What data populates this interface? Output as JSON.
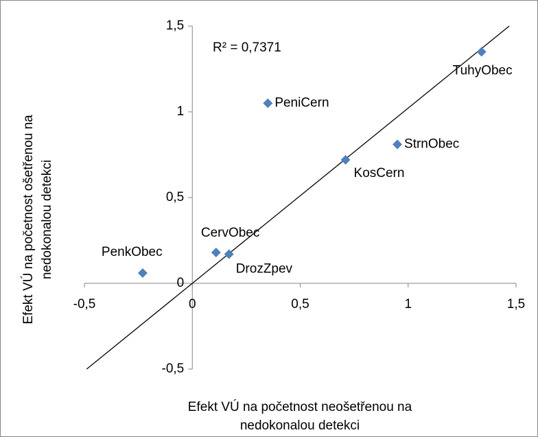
{
  "chart_data": {
    "type": "scatter",
    "annotation": "R² = 0,7371",
    "x_label": [
      "Efekt VÚ na početnost neošetřenou na",
      "nedokonalou detekci"
    ],
    "y_label": [
      "Efekt VÚ na početnost ošetřenou na",
      "nedokonalou detekci"
    ],
    "point_labels": [
      "TuhyObec",
      "PeniCern",
      "StrnObec",
      "KosCern",
      "CervObec",
      "DrozZpev",
      "PenkObec"
    ],
    "x": [
      1.34,
      0.35,
      0.95,
      0.71,
      0.11,
      0.17,
      -0.23
    ],
    "values": [
      1.35,
      1.05,
      0.81,
      0.72,
      0.18,
      0.17,
      0.06
    ],
    "color": "#4f81bd",
    "trendline": true,
    "xlim": [
      -0.5,
      1.5
    ],
    "ylim": [
      -0.5,
      1.5
    ],
    "xticks": [
      {
        "value": -0.5,
        "label": "-0,5"
      },
      0,
      {
        "value": 0.5,
        "label": "0,5"
      },
      1,
      {
        "value": 1.5,
        "label": "1,5"
      }
    ],
    "yticks": [
      {
        "value": -0.5,
        "label": "-0,5"
      },
      0,
      {
        "value": 0.5,
        "label": "0,5"
      },
      1,
      {
        "value": 1.5,
        "label": "1,5"
      }
    ]
  }
}
